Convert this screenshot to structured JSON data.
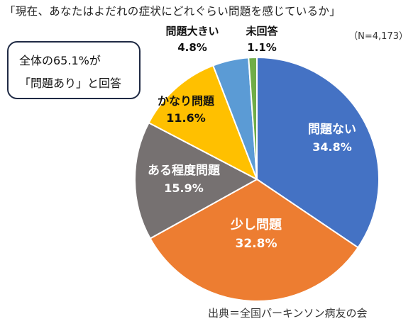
{
  "title": "「現在、あなたはよだれの症状にどれぐらい問題を感じているか」",
  "sample_size": "（N=4,173）",
  "callout": {
    "line1": "全体の65.1%が",
    "line2": "「問題あり」と回答"
  },
  "source": "出典＝全国パーキンソン病友の会",
  "chart_data": {
    "type": "pie",
    "title": "「現在、あなたはよだれの症状にどれぐらい問題を感じているか」",
    "start_angle_deg": 0,
    "direction": "clockwise",
    "slices": [
      {
        "label": "問題ない",
        "value": 34.8,
        "value_label": "34.8%",
        "color": "#4472c4",
        "text_color": "#ffffff"
      },
      {
        "label": "少し問題",
        "value": 32.8,
        "value_label": "32.8%",
        "color": "#ed7d31",
        "text_color": "#ffffff"
      },
      {
        "label": "ある程度問題",
        "value": 15.9,
        "value_label": "15.9%",
        "color": "#767171",
        "text_color": "#ffffff"
      },
      {
        "label": "かなり問題",
        "value": 11.6,
        "value_label": "11.6%",
        "color": "#ffc000",
        "text_color": "#111111"
      },
      {
        "label": "問題大きい",
        "value": 4.8,
        "value_label": "4.8%",
        "color": "#5b9bd5",
        "text_color": "#111111"
      },
      {
        "label": "未回答",
        "value": 1.1,
        "value_label": "1.1%",
        "color": "#70ad47",
        "text_color": "#111111"
      }
    ]
  }
}
